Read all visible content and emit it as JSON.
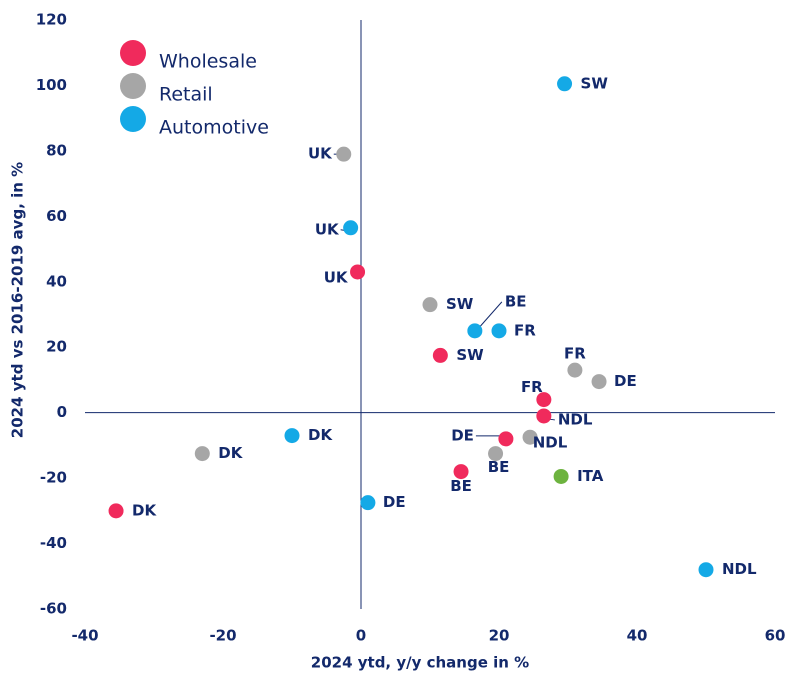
{
  "chart_data": {
    "type": "scatter",
    "xlabel": "2024 ytd, y/y change in %",
    "ylabel": "2024 ytd vs 2016-2019 avg, in %",
    "xlim": [
      -40,
      60
    ],
    "xticks": [
      -40,
      -20,
      0,
      20,
      40,
      60
    ],
    "ylim": [
      -60,
      120
    ],
    "yticks": [
      -60,
      -40,
      -20,
      0,
      20,
      40,
      60,
      80,
      100,
      120
    ],
    "series": [
      {
        "name": "Wholesale",
        "color": "#f02a5c",
        "labels": [
          "UK",
          "SW",
          "FR",
          "NDL",
          "DE",
          "BE",
          "DK"
        ],
        "x": [
          -0.5,
          11.5,
          26.5,
          26.5,
          21,
          14.5,
          -35.5
        ],
        "values": [
          43,
          17.5,
          4,
          -1,
          -8,
          -18,
          -30
        ]
      },
      {
        "name": "Retail",
        "color": "#a6a6a6",
        "labels": [
          "UK",
          "SW",
          "FR",
          "DE",
          "NDL",
          "BE",
          "DK"
        ],
        "x": [
          -2.5,
          10,
          31,
          34.5,
          24.5,
          19.5,
          -23
        ],
        "values": [
          79,
          33,
          13,
          9.5,
          -7.5,
          -12.5,
          -12.5
        ]
      },
      {
        "name": "Automotive",
        "color": "#14a9e6",
        "labels": [
          "SW",
          "UK",
          "BE",
          "FR",
          "DK",
          "DE",
          "NDL"
        ],
        "x": [
          29.5,
          -1.5,
          16.5,
          20,
          -10,
          1,
          50
        ],
        "values": [
          100.5,
          56.5,
          25,
          25,
          -7,
          -27.5,
          -48
        ]
      },
      {
        "color": "#6db33f",
        "labels": [
          "ITA"
        ],
        "x": [
          29
        ],
        "values": [
          -19.5
        ]
      }
    ]
  }
}
